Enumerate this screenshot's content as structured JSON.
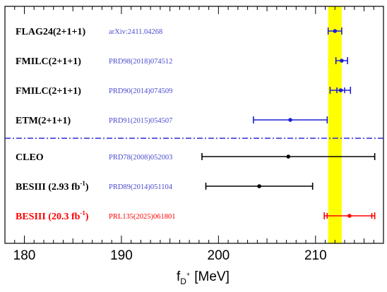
{
  "colors": {
    "black": "#000000",
    "blue": "#1f1fd6",
    "red": "#ff0000",
    "ref_blue": "#4a4ad0",
    "band_fill": "#ffff00",
    "divider": "#2b2bd6"
  },
  "chart_data": {
    "type": "scatter",
    "subtype": "forest-plot-with-horizontal-error-bars",
    "title": "",
    "xlabel": "f",
    "xlabel_sub": "D",
    "xlabel_sup": "+",
    "xlabel_unit": "[MeV]",
    "ylabel": "",
    "xlim": [
      178,
      217
    ],
    "xticks": [
      180,
      190,
      200,
      210
    ],
    "band": {
      "xmin": 211.3,
      "xmax": 212.7,
      "color": "#ffff00"
    },
    "divider_after_index": 3,
    "grid": false,
    "legend": "none",
    "points": [
      {
        "label": "FLAG24(2+1+1)",
        "ref": "arXiv:2411.04268",
        "value": 212.0,
        "err_lo": 0.7,
        "err_hi": 0.7,
        "inner_lo": 0.7,
        "inner_hi": 0.7,
        "color": "#1f1fd6",
        "label_color": "#000000"
      },
      {
        "label": "FMILC(2+1+1)",
        "ref": "PRD98(2018)074512",
        "value": 212.7,
        "err_lo": 0.6,
        "err_hi": 0.6,
        "inner_lo": 0.6,
        "inner_hi": 0.6,
        "color": "#1f1fd6",
        "label_color": "#000000"
      },
      {
        "label": "FMILC(2+1+1)",
        "ref": "PRD90(2014)074509",
        "value": 212.6,
        "err_lo": 1.1,
        "err_hi": 1.0,
        "inner_lo": 0.4,
        "inner_hi": 0.4,
        "color": "#1f1fd6",
        "label_color": "#000000"
      },
      {
        "label": "ETM(2+1+1)",
        "ref": "PRD91(2015)054507",
        "value": 207.4,
        "err_lo": 3.8,
        "err_hi": 3.8,
        "inner_lo": 3.8,
        "inner_hi": 3.8,
        "color": "#1f1fd6",
        "label_color": "#000000"
      },
      {
        "label": "CLEO",
        "ref": "PRD78(2008)052003",
        "value": 207.2,
        "err_lo": 8.9,
        "err_hi": 8.9,
        "inner_lo": 8.9,
        "inner_hi": 8.9,
        "color": "#000000",
        "label_color": "#000000"
      },
      {
        "label": "BESIII (2.93 fb",
        "label_sup": "-1",
        "label_tail": ")",
        "ref": "PRD89(2014)051104",
        "value": 204.2,
        "err_lo": 5.5,
        "err_hi": 5.5,
        "inner_lo": 5.5,
        "inner_hi": 5.5,
        "color": "#000000",
        "label_color": "#000000"
      },
      {
        "label": "BESIII (20.3 fb",
        "label_sup": "-1",
        "label_tail": ")",
        "ref": "PRL135(2025)061801",
        "value": 213.5,
        "err_lo": 2.6,
        "err_hi": 2.6,
        "inner_lo": 2.3,
        "inner_hi": 2.3,
        "color": "#ff0000",
        "label_color": "#ff0000"
      }
    ]
  }
}
